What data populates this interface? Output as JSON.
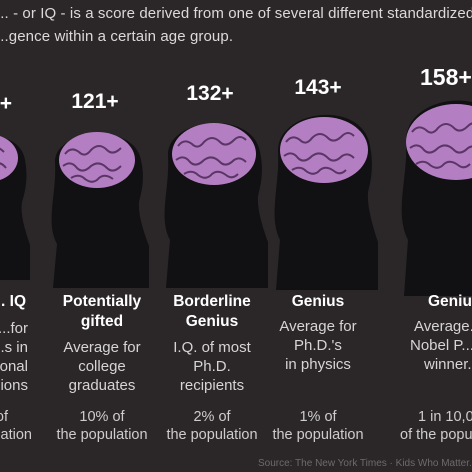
{
  "intro": {
    "line1": "... - or IQ - is a score derived from one of several different standardized",
    "line2": "...gence within a certain age group."
  },
  "columns": [
    {
      "score": "...+",
      "title": [
        "... IQ"
      ],
      "desc": [
        "...for",
        "...s in",
        "...onal",
        "...ions"
      ],
      "pop": [
        "...of",
        "...opulation"
      ]
    },
    {
      "score": "121+",
      "title": [
        "Potentially",
        "gifted"
      ],
      "desc": [
        "Average for",
        "college",
        "graduates"
      ],
      "pop": [
        "10% of",
        "the population"
      ]
    },
    {
      "score": "132+",
      "title": [
        "Borderline",
        "Genius"
      ],
      "desc": [
        "I.Q. of most",
        "Ph.D.",
        "recipients"
      ],
      "pop": [
        "2% of",
        "the population"
      ]
    },
    {
      "score": "143+",
      "title": [
        "Genius"
      ],
      "desc": [
        "Average for",
        "Ph.D.'s",
        "in physics"
      ],
      "pop": [
        "1% of",
        "the population"
      ]
    },
    {
      "score": "158+",
      "title": [
        "Geniu..."
      ],
      "desc": [
        "Average...",
        "Nobel P...",
        "winner..."
      ],
      "pop": [
        "1 in 10,0...",
        "of the popula..."
      ]
    }
  ],
  "source": "Source: The New York Times · Kids Who Matter...",
  "colors": {
    "background": "#2b2729",
    "silhouette": "#111012",
    "brain": "#b47fc2",
    "brain_fold": "#5a3566"
  }
}
